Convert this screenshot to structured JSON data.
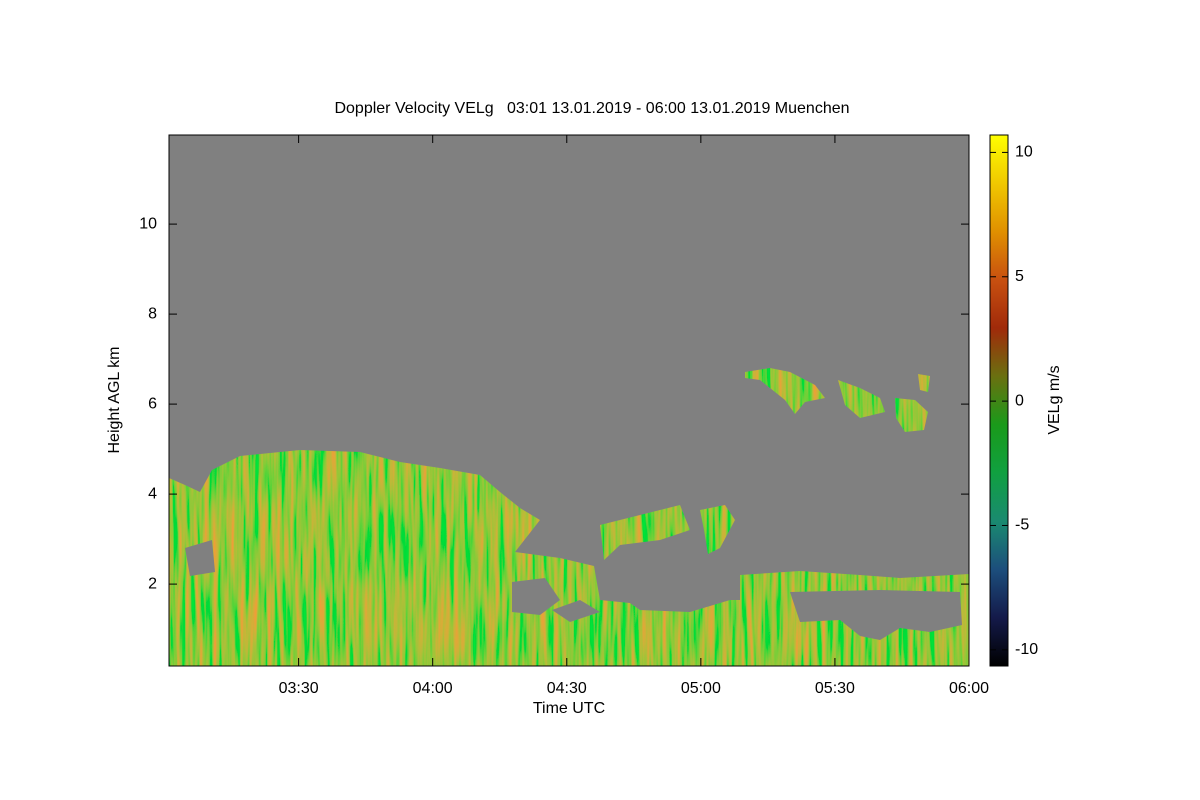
{
  "chart_data": {
    "type": "heatmap",
    "title": "Doppler Velocity VELg   03:01 13.01.2019 - 06:00 13.01.2019 Muenchen",
    "x_label": "Time UTC",
    "y_label": "Height AGL km",
    "xlim": [
      "03:01",
      "06:00"
    ],
    "xticks": [
      "03:30",
      "04:00",
      "04:30",
      "05:00",
      "05:30",
      "06:00"
    ],
    "ylim": [
      0.18,
      11.98
    ],
    "yticks": [
      2,
      4,
      6,
      8,
      10
    ],
    "colorbar": {
      "label": "VELg m/s",
      "lim": [
        -10.65,
        10.7
      ],
      "ticks": [
        -10,
        -5,
        0,
        5,
        10
      ],
      "colors": [
        "#000000",
        "#141a4a",
        "#1c4e7c",
        "#1a8a70",
        "#10a040",
        "#1a9a1a",
        "#6a7010",
        "#a02a0a",
        "#c85010",
        "#e09000",
        "#f0c800",
        "#ffff00"
      ]
    },
    "background": "#808080"
  }
}
